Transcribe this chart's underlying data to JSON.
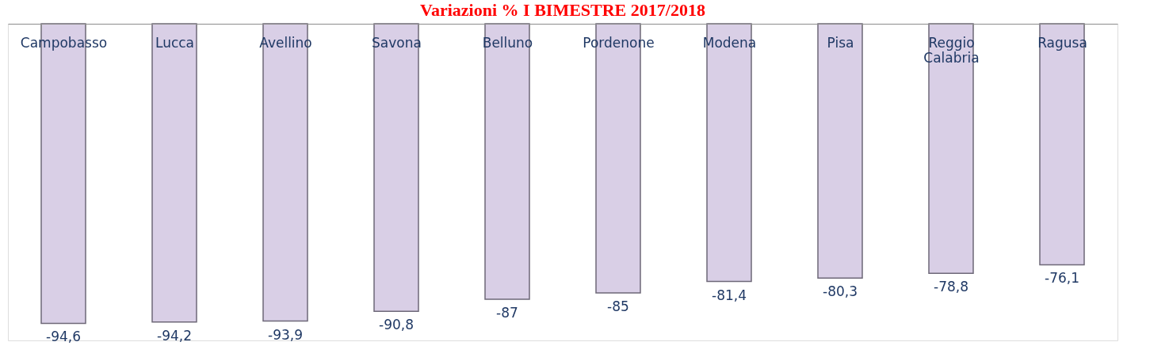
{
  "chart_data": {
    "type": "bar",
    "title": "Variazioni % I BIMESTRE 2017/2018",
    "categories": [
      "Campobasso",
      "Lucca",
      "Avellino",
      "Savona",
      "Belluno",
      "Pordenone",
      "Modena",
      "Pisa",
      "Reggio Calabria",
      "Ragusa"
    ],
    "values": [
      -94.6,
      -94.2,
      -93.9,
      -90.8,
      -87,
      -85,
      -81.4,
      -80.3,
      -78.8,
      -76.1
    ],
    "value_labels": [
      "-94,6",
      "-94,2",
      "-93,9",
      "-90,8",
      "-87",
      "-85",
      "-81,4",
      "-80,3",
      "-78,8",
      "-76,1"
    ],
    "color": "#d9cfe6",
    "ylim": [
      -100,
      0
    ],
    "grid": false
  }
}
